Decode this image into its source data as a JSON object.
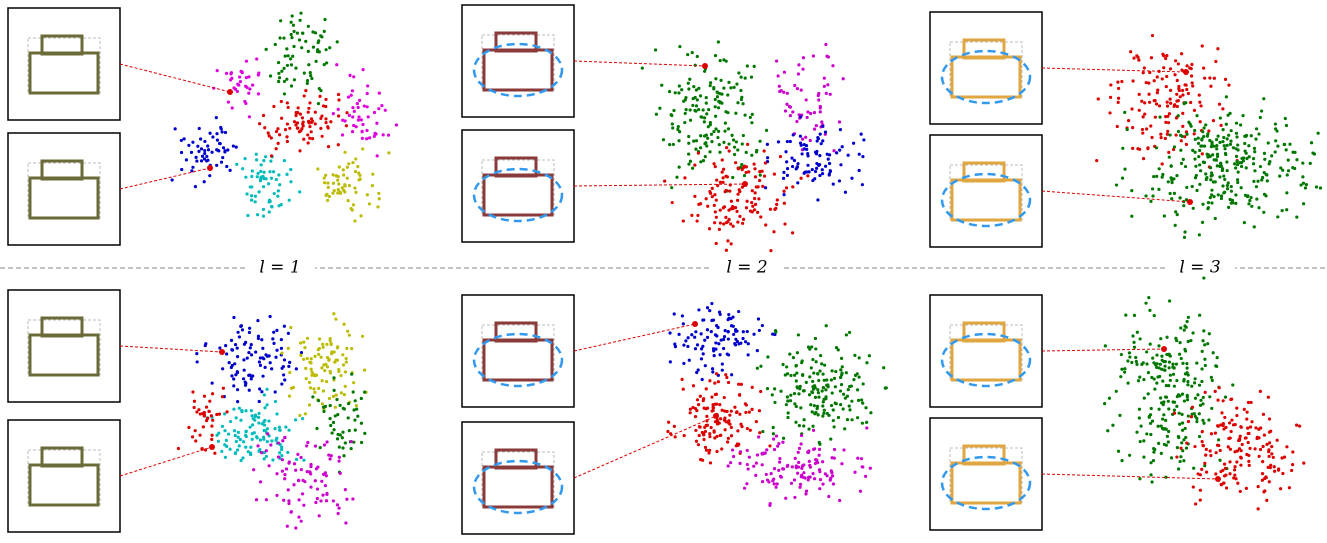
{
  "separators": [
    {
      "label": "l = 1"
    },
    {
      "label": "l = 2"
    },
    {
      "label": "l = 3"
    }
  ],
  "panels": [
    {
      "colors": [
        "#0000cc",
        "#00bbbb",
        "#bbbb00",
        "#dd0000",
        "#dd00dd",
        "#dd00dd",
        "#007700"
      ]
    },
    {
      "colors": [
        "#007700",
        "#cc00cc",
        "#0000cc",
        "#dd0000"
      ]
    },
    {
      "colors": [
        "#dd0000",
        "#007700"
      ]
    },
    {
      "colors": [
        "#0000cc",
        "#bbbb00",
        "#00bbbb",
        "#dd0000",
        "#007700",
        "#cc00cc"
      ]
    },
    {
      "colors": [
        "#0000cc",
        "#007700",
        "#dd0000",
        "#cc00cc"
      ]
    },
    {
      "colors": [
        "#007700",
        "#dd0000"
      ]
    }
  ]
}
